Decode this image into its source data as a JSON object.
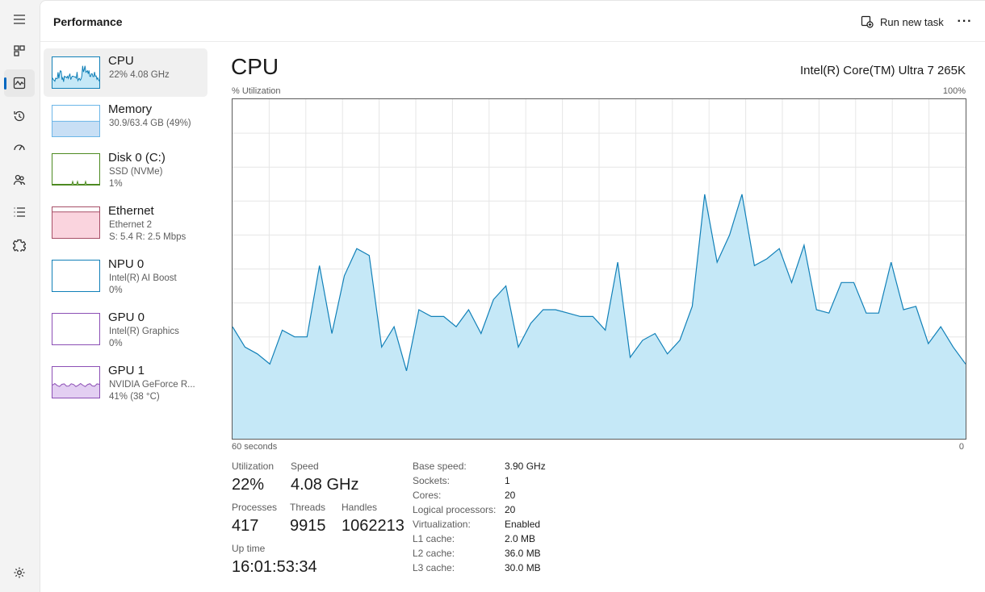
{
  "header": {
    "title": "Performance",
    "run_task_label": "Run new task",
    "more_label": "···"
  },
  "nav": {
    "icons": [
      "hamburger-menu-icon",
      "processes-icon",
      "performance-icon",
      "app-history-icon",
      "startup-apps-icon",
      "users-icon",
      "details-icon",
      "services-icon",
      "settings-icon"
    ],
    "active": "performance-icon"
  },
  "devices": [
    {
      "name": "CPU",
      "sub1": "22% 4.08 GHz",
      "sub2": "",
      "color": "#1180b8",
      "fill": "#c5e8f7",
      "selected": true,
      "level": 0.22
    },
    {
      "name": "Memory",
      "sub1": "30.9/63.4 GB (49%)",
      "sub2": "",
      "color": "#6cb6e8",
      "fill": "#c8dff5",
      "selected": false,
      "level": 0.49
    },
    {
      "name": "Disk 0 (C:)",
      "sub1": "SSD (NVMe)",
      "sub2": "1%",
      "color": "#4d8a21",
      "fill": "#d8ecc8",
      "selected": false,
      "level": 0.01
    },
    {
      "name": "Ethernet",
      "sub1": "Ethernet 2",
      "sub2": "S: 5.4 R: 2.5 Mbps",
      "color": "#a74f67",
      "fill": "#fad4de",
      "selected": false,
      "level": 0.85
    },
    {
      "name": "NPU 0",
      "sub1": "Intel(R) AI Boost",
      "sub2": "0%",
      "color": "#1180b8",
      "fill": "#ffffff",
      "selected": false,
      "level": 0
    },
    {
      "name": "GPU 0",
      "sub1": "Intel(R) Graphics",
      "sub2": "0%",
      "color": "#8c4fb5",
      "fill": "#ffffff",
      "selected": false,
      "level": 0
    },
    {
      "name": "GPU 1",
      "sub1": "NVIDIA GeForce R...",
      "sub2": "41% (38 °C)",
      "color": "#8c4fb5",
      "fill": "#e3cff2",
      "selected": false,
      "level": 0.41
    }
  ],
  "cpu": {
    "title": "CPU",
    "model": "Intel(R) Core(TM) Ultra 7 265K",
    "y_label": "% Utilization",
    "y_max_label": "100%",
    "x_left_label": "60 seconds",
    "x_right_label": "0",
    "line_color": "#1180b8",
    "fill_color": "#c5e8f7",
    "grid_color": "#e6e6e6"
  },
  "stats": {
    "utilization_label": "Utilization",
    "utilization": "22%",
    "speed_label": "Speed",
    "speed": "4.08 GHz",
    "processes_label": "Processes",
    "processes": "417",
    "threads_label": "Threads",
    "threads": "9915",
    "handles_label": "Handles",
    "handles": "1062213",
    "uptime_label": "Up time",
    "uptime": "16:01:53:34"
  },
  "specs": [
    {
      "k": "Base speed:",
      "v": "3.90 GHz"
    },
    {
      "k": "Sockets:",
      "v": "1"
    },
    {
      "k": "Cores:",
      "v": "20"
    },
    {
      "k": "Logical processors:",
      "v": "20"
    },
    {
      "k": "Virtualization:",
      "v": "Enabled"
    },
    {
      "k": "L1 cache:",
      "v": "2.0 MB"
    },
    {
      "k": "L2 cache:",
      "v": "36.0 MB"
    },
    {
      "k": "L3 cache:",
      "v": "30.0 MB"
    }
  ],
  "chart_data": {
    "type": "area",
    "x_range": [
      60,
      0
    ],
    "ylim": [
      0,
      100
    ],
    "grid": true,
    "values": [
      33,
      27,
      25,
      22,
      32,
      30,
      30,
      51,
      31,
      48,
      56,
      54,
      27,
      33,
      20,
      38,
      36,
      36,
      33,
      38,
      31,
      41,
      45,
      27,
      34,
      38,
      38,
      37,
      36,
      36,
      32,
      52,
      24,
      29,
      31,
      25,
      29,
      39,
      72,
      52,
      60,
      72,
      51,
      53,
      56,
      46,
      57,
      38,
      37,
      46,
      46,
      37,
      37,
      52,
      38,
      39,
      28,
      33,
      27,
      22
    ]
  }
}
